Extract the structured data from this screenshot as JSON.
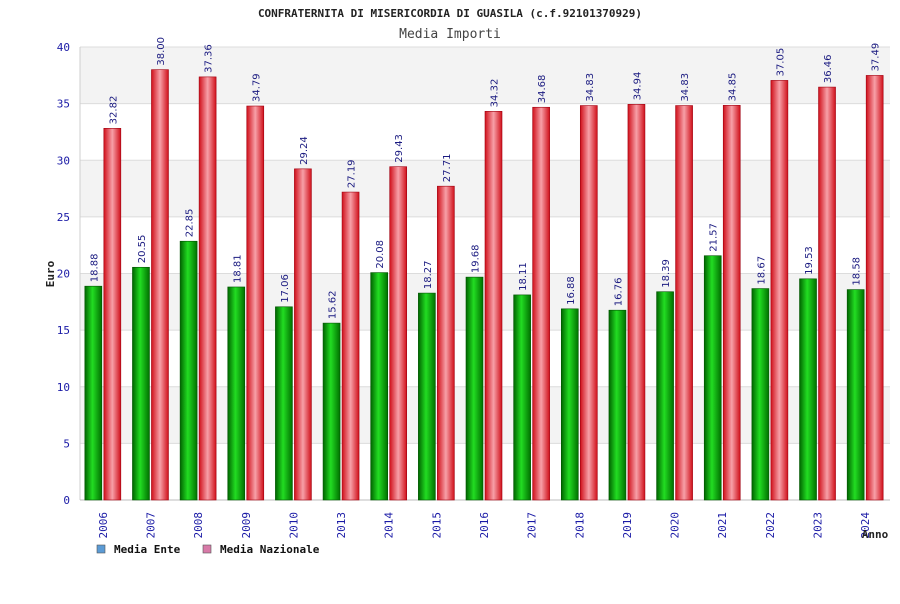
{
  "chart_data": {
    "type": "bar",
    "title": "CONFRATERNITA DI MISERICORDIA DI GUASILA (c.f.92101370929)",
    "subtitle": "Media Importi",
    "xlabel": "Anno",
    "ylabel": "Euro",
    "ylim": [
      0,
      40
    ],
    "yticks": [
      0,
      5,
      10,
      15,
      20,
      25,
      30,
      35,
      40
    ],
    "grid": true,
    "legend_position": "bottom-left",
    "categories": [
      "2006",
      "2007",
      "2008",
      "2009",
      "2010",
      "2013",
      "2014",
      "2015",
      "2016",
      "2017",
      "2018",
      "2019",
      "2020",
      "2021",
      "2022",
      "2023",
      "2024"
    ],
    "series": [
      {
        "name": "Media Ente",
        "color": "#00b000",
        "legend_color": "#5b9bd5",
        "values": [
          18.88,
          20.55,
          22.85,
          18.81,
          17.06,
          15.62,
          20.08,
          18.27,
          19.68,
          18.11,
          16.88,
          16.76,
          18.39,
          21.57,
          18.67,
          19.53,
          18.58
        ],
        "labels": [
          "18.88",
          "20.55",
          "22.85",
          "18.81",
          "17.06",
          "15.62",
          "20.08",
          "18.27",
          "19.68",
          "18.11",
          "16.88",
          "16.76",
          "18.39",
          "21.57",
          "18.67",
          "19.53",
          "18.58"
        ]
      },
      {
        "name": "Media Nazionale",
        "color": "#e8202a",
        "legend_color": "#d87aa8",
        "values": [
          32.82,
          38.0,
          37.36,
          34.79,
          29.24,
          27.19,
          29.43,
          27.71,
          34.32,
          34.68,
          34.83,
          34.94,
          34.83,
          34.85,
          37.05,
          36.46,
          37.49
        ],
        "labels": [
          "32.82",
          "38.00",
          "37.36",
          "34.79",
          "29.24",
          "27.19",
          "29.43",
          "27.71",
          "34.32",
          "34.68",
          "34.83",
          "34.94",
          "34.83",
          "34.85",
          "37.05",
          "36.46",
          "37.49"
        ]
      }
    ]
  }
}
